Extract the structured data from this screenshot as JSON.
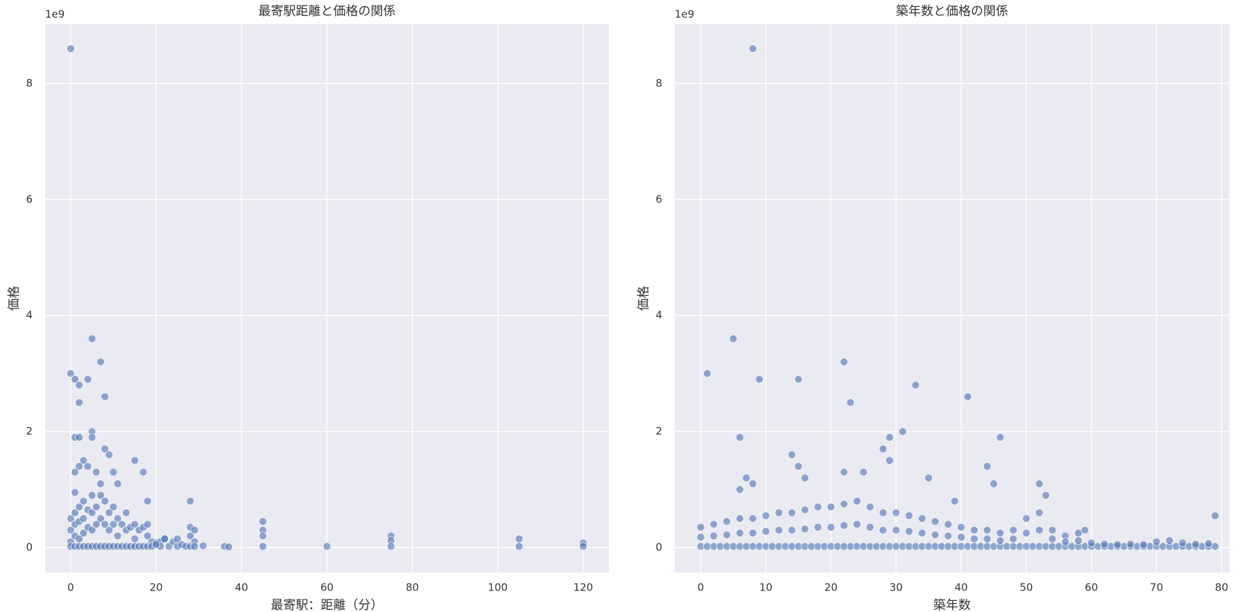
{
  "chart_data": [
    {
      "type": "scatter",
      "title": "最寄駅距離と価格の関係",
      "x_label": "最寄駅：距離（分）",
      "y_label": "価格",
      "offset_label": "1e9",
      "color": "#4c72b0",
      "grid": true,
      "xlim": [
        -6,
        126
      ],
      "ylim": [
        -0.43,
        9.02
      ],
      "xticks": [
        0,
        20,
        40,
        60,
        80,
        100,
        120
      ],
      "yticks": [
        0,
        2,
        4,
        6,
        8
      ],
      "x": [
        0,
        0,
        0,
        0,
        1,
        1,
        1,
        1,
        1,
        2,
        2,
        2,
        2,
        3,
        3,
        3,
        3,
        4,
        4,
        4,
        5,
        5,
        5,
        5,
        6,
        6,
        6,
        7,
        7,
        7,
        8,
        8,
        8,
        9,
        9,
        9,
        10,
        10,
        10,
        11,
        11,
        11,
        12,
        12,
        13,
        13,
        13,
        14,
        14,
        15,
        15,
        15,
        16,
        16,
        17,
        17,
        18,
        18,
        18,
        19,
        19,
        20,
        21,
        21,
        22,
        23,
        24,
        25,
        26,
        27,
        28,
        28,
        29,
        29,
        0,
        0,
        1,
        2,
        2,
        4,
        5,
        7,
        8,
        1,
        2,
        5,
        5,
        8,
        9,
        15,
        17,
        3,
        4,
        2,
        1,
        6,
        10,
        11,
        7,
        18,
        28,
        45,
        45,
        45,
        45,
        60,
        75,
        75,
        75,
        105,
        105,
        120,
        120,
        31,
        36,
        37,
        28,
        29,
        25,
        22,
        20
      ],
      "values": [
        0.5,
        0.3,
        0.1,
        0.02,
        0.6,
        0.4,
        0.2,
        0.02,
        0.95,
        0.7,
        0.45,
        0.15,
        0.02,
        0.8,
        0.5,
        0.25,
        0.02,
        0.65,
        0.35,
        0.02,
        0.9,
        0.6,
        0.3,
        0.02,
        0.7,
        0.4,
        0.02,
        0.9,
        0.5,
        0.02,
        0.8,
        0.4,
        0.02,
        0.6,
        0.3,
        0.02,
        0.7,
        0.4,
        0.02,
        0.5,
        0.2,
        0.02,
        0.4,
        0.02,
        0.6,
        0.3,
        0.02,
        0.35,
        0.02,
        0.4,
        0.15,
        0.02,
        0.3,
        0.02,
        0.35,
        0.02,
        0.4,
        0.2,
        0.02,
        0.1,
        0.02,
        0.08,
        0.1,
        0.02,
        0.15,
        0.02,
        0.1,
        0.02,
        0.05,
        0.02,
        0.2,
        0.02,
        0.1,
        0.02,
        8.6,
        3.0,
        2.9,
        2.8,
        2.5,
        2.9,
        3.6,
        3.2,
        2.6,
        1.9,
        1.9,
        2.0,
        1.9,
        1.7,
        1.6,
        1.5,
        1.3,
        1.5,
        1.4,
        1.4,
        1.3,
        1.3,
        1.3,
        1.1,
        1.1,
        0.8,
        0.8,
        0.45,
        0.3,
        0.2,
        0.02,
        0.02,
        0.2,
        0.12,
        0.02,
        0.15,
        0.02,
        0.08,
        0.02,
        0.03,
        0.02,
        0.01,
        0.35,
        0.3,
        0.15,
        0.15,
        0.05
      ]
    },
    {
      "type": "scatter",
      "title": "築年数と価格の関係",
      "x_label": "築年数",
      "y_label": "価格",
      "offset_label": "1e9",
      "color": "#4c72b0",
      "grid": true,
      "xlim": [
        -4,
        81.2
      ],
      "ylim": [
        -0.43,
        9.02
      ],
      "xticks": [
        0,
        10,
        20,
        30,
        40,
        50,
        60,
        70,
        80
      ],
      "yticks": [
        0,
        2,
        4,
        6,
        8
      ],
      "x": [
        0,
        1,
        2,
        3,
        4,
        5,
        6,
        7,
        8,
        9,
        10,
        11,
        12,
        13,
        14,
        15,
        16,
        17,
        18,
        19,
        20,
        21,
        22,
        23,
        24,
        25,
        26,
        27,
        28,
        29,
        30,
        31,
        32,
        33,
        34,
        35,
        36,
        37,
        38,
        39,
        40,
        41,
        42,
        43,
        44,
        45,
        46,
        47,
        48,
        49,
        50,
        51,
        52,
        53,
        54,
        55,
        56,
        57,
        58,
        59,
        60,
        61,
        62,
        63,
        64,
        65,
        66,
        67,
        68,
        69,
        70,
        71,
        72,
        73,
        74,
        75,
        76,
        77,
        78,
        79,
        0,
        2,
        4,
        6,
        8,
        10,
        12,
        14,
        16,
        18,
        20,
        22,
        24,
        26,
        28,
        30,
        32,
        34,
        36,
        38,
        40,
        42,
        44,
        46,
        48,
        50,
        52,
        54,
        56,
        58,
        0,
        2,
        4,
        6,
        8,
        10,
        12,
        14,
        16,
        18,
        20,
        22,
        24,
        26,
        28,
        30,
        32,
        34,
        36,
        38,
        40,
        42,
        44,
        46,
        48,
        50,
        52,
        54,
        56,
        58,
        60,
        62,
        64,
        66,
        68,
        70,
        72,
        74,
        76,
        78,
        8,
        1,
        5,
        9,
        15,
        22,
        23,
        33,
        41,
        6,
        29,
        31,
        46,
        29,
        28,
        14,
        15,
        44,
        35,
        45,
        52,
        7,
        16,
        25,
        22,
        53,
        79,
        59,
        6,
        8,
        39
      ],
      "values": [
        0.02,
        0.02,
        0.02,
        0.02,
        0.02,
        0.02,
        0.02,
        0.02,
        0.02,
        0.02,
        0.02,
        0.02,
        0.02,
        0.02,
        0.02,
        0.02,
        0.02,
        0.02,
        0.02,
        0.02,
        0.02,
        0.02,
        0.02,
        0.02,
        0.02,
        0.02,
        0.02,
        0.02,
        0.02,
        0.02,
        0.02,
        0.02,
        0.02,
        0.02,
        0.02,
        0.02,
        0.02,
        0.02,
        0.02,
        0.02,
        0.02,
        0.02,
        0.02,
        0.02,
        0.02,
        0.02,
        0.02,
        0.02,
        0.02,
        0.02,
        0.02,
        0.02,
        0.02,
        0.02,
        0.02,
        0.02,
        0.02,
        0.02,
        0.02,
        0.02,
        0.02,
        0.02,
        0.02,
        0.02,
        0.02,
        0.02,
        0.02,
        0.02,
        0.02,
        0.02,
        0.02,
        0.02,
        0.02,
        0.02,
        0.02,
        0.02,
        0.02,
        0.02,
        0.02,
        0.02,
        0.35,
        0.4,
        0.45,
        0.5,
        0.5,
        0.55,
        0.6,
        0.6,
        0.65,
        0.7,
        0.7,
        0.75,
        0.8,
        0.7,
        0.6,
        0.6,
        0.55,
        0.5,
        0.45,
        0.4,
        0.35,
        0.3,
        0.3,
        0.25,
        0.3,
        0.5,
        0.6,
        0.3,
        0.2,
        0.25,
        0.18,
        0.2,
        0.22,
        0.25,
        0.25,
        0.28,
        0.3,
        0.3,
        0.32,
        0.35,
        0.35,
        0.38,
        0.4,
        0.35,
        0.3,
        0.3,
        0.28,
        0.25,
        0.22,
        0.2,
        0.18,
        0.15,
        0.15,
        0.12,
        0.15,
        0.25,
        0.3,
        0.15,
        0.1,
        0.12,
        0.08,
        0.06,
        0.05,
        0.06,
        0.05,
        0.1,
        0.12,
        0.08,
        0.06,
        0.07,
        8.6,
        3.0,
        3.6,
        2.9,
        2.9,
        3.2,
        2.5,
        2.8,
        2.6,
        1.9,
        1.9,
        2.0,
        1.9,
        1.5,
        1.7,
        1.6,
        1.4,
        1.4,
        1.2,
        1.1,
        1.1,
        1.2,
        1.2,
        1.3,
        1.3,
        0.9,
        0.55,
        0.3,
        1.0,
        1.1,
        0.8
      ]
    }
  ]
}
